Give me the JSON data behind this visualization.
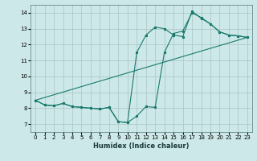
{
  "title": "",
  "xlabel": "Humidex (Indice chaleur)",
  "bg_color": "#cde8e8",
  "grid_color": "#b0c8c8",
  "line_color": "#1a7a6e",
  "xlim": [
    -0.5,
    23.5
  ],
  "ylim": [
    6.5,
    14.5
  ],
  "xticks": [
    0,
    1,
    2,
    3,
    4,
    5,
    6,
    7,
    8,
    9,
    10,
    11,
    12,
    13,
    14,
    15,
    16,
    17,
    18,
    19,
    20,
    21,
    22,
    23
  ],
  "yticks": [
    7,
    8,
    9,
    10,
    11,
    12,
    13,
    14
  ],
  "curve1_x": [
    0,
    1,
    2,
    3,
    4,
    5,
    6,
    7,
    8,
    9,
    10,
    11,
    12,
    13,
    14,
    15,
    16,
    17,
    18,
    19,
    20,
    21,
    22,
    23
  ],
  "curve1_y": [
    8.5,
    8.2,
    8.15,
    8.3,
    8.1,
    8.05,
    8.0,
    7.95,
    8.05,
    7.15,
    7.1,
    7.5,
    8.1,
    8.05,
    11.5,
    12.7,
    12.85,
    14.0,
    13.7,
    13.3,
    12.8,
    12.6,
    12.55,
    12.45
  ],
  "curve2_x": [
    0,
    1,
    2,
    3,
    4,
    5,
    6,
    7,
    8,
    9,
    10,
    11,
    12,
    13,
    14,
    15,
    16,
    17,
    18,
    19,
    20,
    21,
    22,
    23
  ],
  "curve2_y": [
    8.5,
    8.2,
    8.15,
    8.3,
    8.1,
    8.05,
    8.0,
    7.95,
    8.05,
    7.15,
    7.1,
    11.5,
    12.6,
    13.1,
    13.0,
    12.6,
    12.5,
    14.1,
    13.65,
    13.3,
    12.8,
    12.6,
    12.55,
    12.45
  ],
  "curve3_x": [
    0,
    23
  ],
  "curve3_y": [
    8.5,
    12.45
  ]
}
